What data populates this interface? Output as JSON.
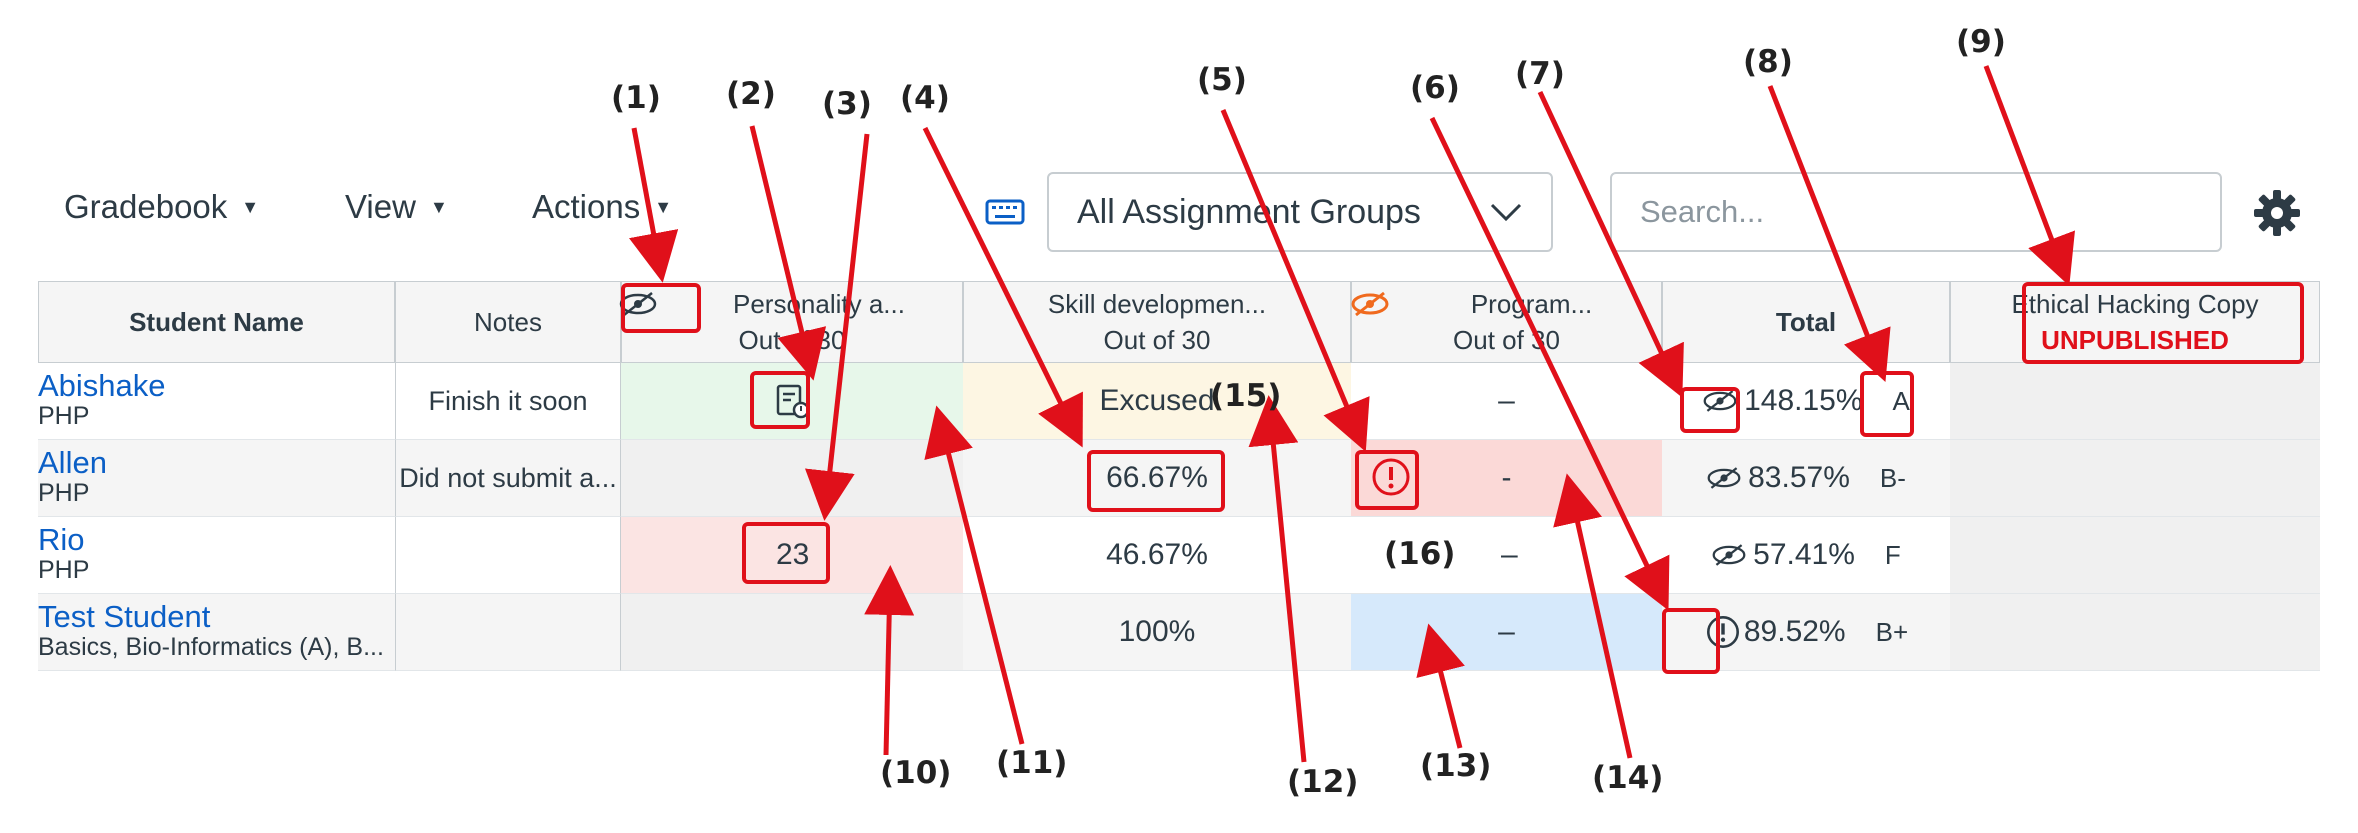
{
  "toolbar": {
    "gradebook": "Gradebook",
    "view": "View",
    "actions": "Actions",
    "caret": "▼",
    "assignment_group": "All Assignment Groups",
    "search_placeholder": "Search..."
  },
  "columns": {
    "student_name": "Student Name",
    "notes": "Notes",
    "personality_title": "Personality a...",
    "personality_out": "Out of 30",
    "skill_title": "Skill developmen...",
    "skill_out": "Out of 30",
    "program_title": "Program...",
    "program_out": "Out of 30",
    "total": "Total",
    "ethical_title": "Ethical Hacking Copy",
    "ethical_status": "UNPUBLISHED"
  },
  "students": [
    {
      "name": "Abishake",
      "section": "PHP",
      "notes": "Finish it soon",
      "personality": "",
      "skill": "Excused",
      "program": "–",
      "total": "148.15%",
      "grade": "A"
    },
    {
      "name": "Allen",
      "section": "PHP",
      "notes": "Did not submit a...",
      "personality": "",
      "skill": "66.67%",
      "program": "-",
      "total": "83.57%",
      "grade": "B-"
    },
    {
      "name": "Rio",
      "section": "PHP",
      "notes": "",
      "personality": "23",
      "skill": "46.67%",
      "program": "–",
      "total": "57.41%",
      "grade": "F"
    },
    {
      "name": "Test Student",
      "section": "Basics, Bio-Informatics (A), B...",
      "notes": "",
      "personality": "",
      "skill": "100%",
      "program": "–",
      "total": "89.52%",
      "grade": "B+"
    }
  ],
  "callouts": [
    "(1)",
    "(2)",
    "(3)",
    "(4)",
    "(5)",
    "(6)",
    "(7)",
    "(8)",
    "(9)",
    "(10)",
    "(11)",
    "(12)",
    "(13)",
    "(14)",
    "(15)",
    "(16)"
  ],
  "colors": {
    "accent_red": "#e0101a",
    "link_blue": "#0b5fc6",
    "green_cell": "#e7f7ea",
    "yellow_cell": "#fdf6e3",
    "red_cell": "#fbd9d7",
    "blue_cell": "#d6e9fb",
    "gray_cell": "#f0f0f0",
    "hidden_orange": "#f06a1e"
  }
}
